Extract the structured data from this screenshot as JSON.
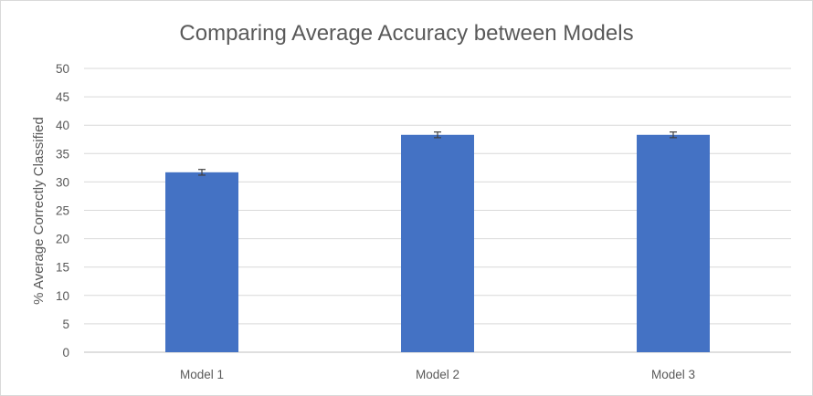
{
  "chart_data": {
    "type": "bar",
    "title": "Comparing Average Accuracy between Models",
    "xlabel": "",
    "ylabel": "% Average Correctly Classified",
    "categories": [
      "Model 1",
      "Model 2",
      "Model 3"
    ],
    "values": [
      31.7,
      38.3,
      38.3
    ],
    "error": [
      0.5,
      0.5,
      0.5
    ],
    "ylim": [
      0,
      50
    ],
    "yticks": [
      0,
      5,
      10,
      15,
      20,
      25,
      30,
      35,
      40,
      45,
      50
    ],
    "grid": true,
    "legend": "none",
    "bar_color": "#4472c4"
  }
}
